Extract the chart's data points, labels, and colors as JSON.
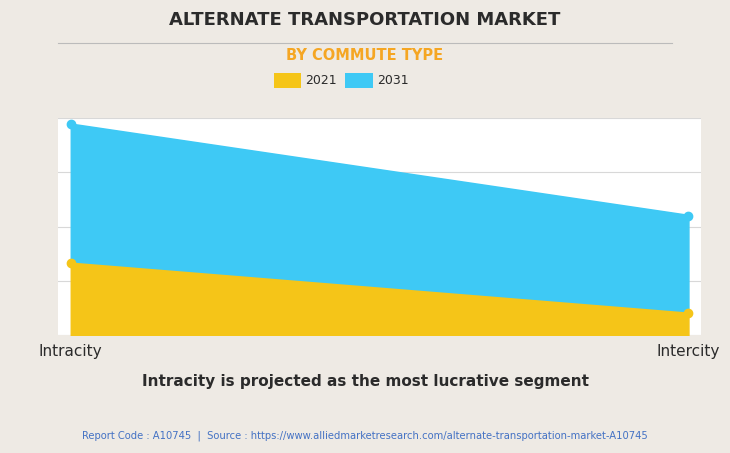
{
  "title": "ALTERNATE TRANSPORTATION MARKET",
  "subtitle": "BY COMMUTE TYPE",
  "categories": [
    "Intracity",
    "Intercity"
  ],
  "series": [
    {
      "label": "2021",
      "values": [
        0.33,
        0.1
      ],
      "color": "#F5C518",
      "marker_color": "#F5C518"
    },
    {
      "label": "2031",
      "values": [
        0.97,
        0.55
      ],
      "color": "#3EC9F5",
      "marker_color": "#3EC9F5"
    }
  ],
  "ylim": [
    0,
    1.0
  ],
  "xlim": [
    -0.02,
    1.02
  ],
  "background_color": "#EEEAE4",
  "plot_bg_color": "#FFFFFF",
  "title_fontsize": 13,
  "subtitle_fontsize": 10.5,
  "footer_text": "Report Code : A10745  |  Source : https://www.alliedmarketresearch.com/alternate-transportation-market-A10745",
  "footer_color": "#4472C4",
  "bottom_label": "Intracity is projected as the most lucrative segment",
  "title_color": "#2B2B2B",
  "subtitle_color": "#F5A623",
  "axis_label_fontsize": 11,
  "grid_color": "#D8D8D8",
  "legend_patch_color_2021": "#F5C518",
  "legend_patch_color_2031": "#3EC9F5"
}
